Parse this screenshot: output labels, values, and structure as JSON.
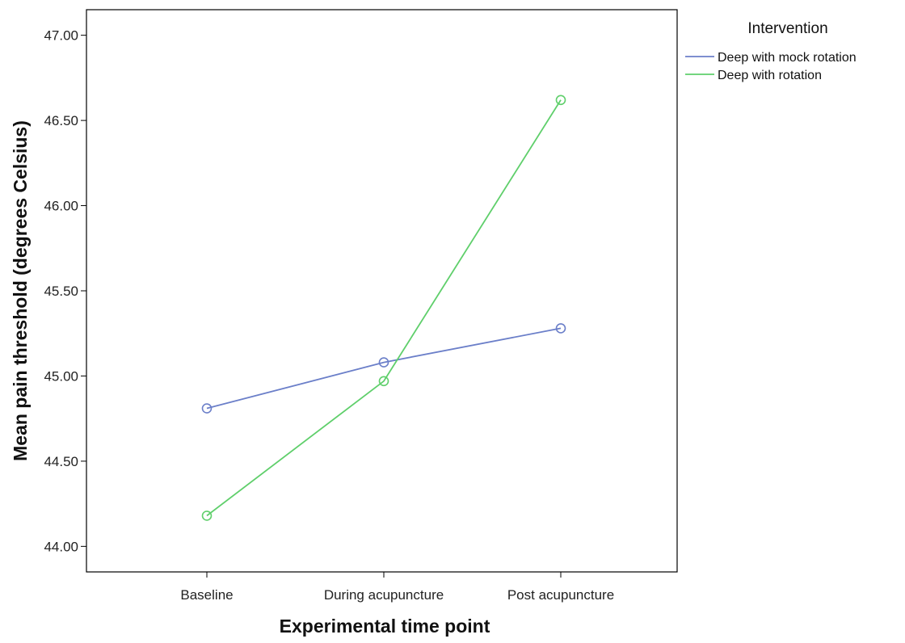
{
  "chart_data": {
    "type": "line",
    "categories": [
      "Baseline",
      "During acupuncture",
      "Post acupuncture"
    ],
    "series": [
      {
        "name": "Deep with mock rotation",
        "values": [
          44.81,
          45.08,
          45.28
        ],
        "color": "#6b7fc9"
      },
      {
        "name": "Deep with rotation",
        "values": [
          44.18,
          44.97,
          46.62
        ],
        "color": "#5fcf6b"
      }
    ],
    "xlabel": "Experimental time point",
    "ylabel": "Mean pain threshold (degrees Celsius)",
    "ylim": [
      43.85,
      47.15
    ],
    "yticks": [
      "44.00",
      "44.50",
      "45.00",
      "45.50",
      "46.00",
      "46.50",
      "47.00"
    ],
    "legend": {
      "title": "Intervention",
      "position": "right"
    },
    "grid": false,
    "markers": "open-circle"
  }
}
